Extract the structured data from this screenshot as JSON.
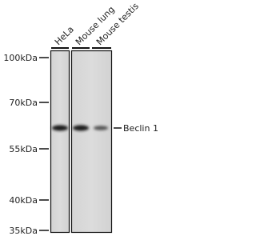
{
  "lanes": [
    "HeLa",
    "Mouse lung",
    "Mouse testis"
  ],
  "markers": [
    "100kDa",
    "70kDa",
    "55kDa",
    "40kDa",
    "35kDa"
  ],
  "band_label": "Beclin 1"
}
